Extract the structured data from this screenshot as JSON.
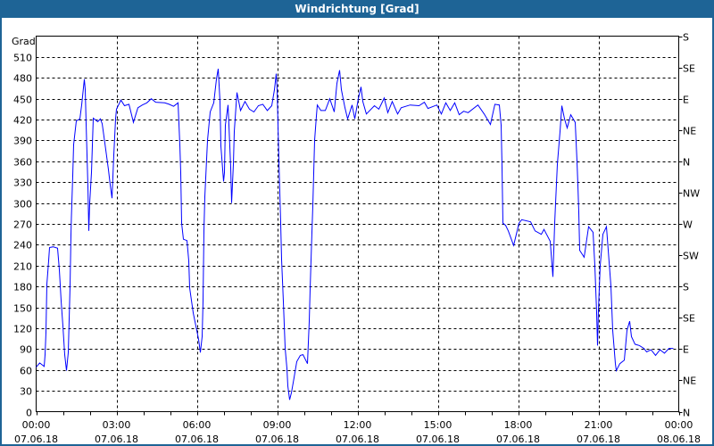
{
  "window": {
    "title": "Windrichtung [Grad]"
  },
  "colors": {
    "titlebar": "#1e6496",
    "series": "#0000ff",
    "grid": "#000000"
  },
  "chart_data": {
    "type": "line",
    "title": "Windrichtung [Grad]",
    "ylabel": "Grad",
    "ylim": [
      0,
      540
    ],
    "xlim": [
      "07.06.18 00:00",
      "08.06.18 00:00"
    ],
    "grid": true,
    "yticks": [
      "0",
      "30",
      "60",
      "90",
      "120",
      "150",
      "180",
      "210",
      "240",
      "270",
      "300",
      "330",
      "360",
      "390",
      "420",
      "450",
      "480",
      "510"
    ],
    "right_ticks": [
      "N",
      "NE",
      "E",
      "SE",
      "S",
      "SW",
      "W",
      "NW",
      "N",
      "NE",
      "E",
      "SE",
      "S"
    ],
    "xticks": [
      {
        "time": "00:00",
        "date": "07.06.18"
      },
      {
        "time": "03:00",
        "date": "07.06.18"
      },
      {
        "time": "06:00",
        "date": "07.06.18"
      },
      {
        "time": "09:00",
        "date": "07.06.18"
      },
      {
        "time": "12:00",
        "date": "07.06.18"
      },
      {
        "time": "15:00",
        "date": "07.06.18"
      },
      {
        "time": "18:00",
        "date": "07.06.18"
      },
      {
        "time": "21:00",
        "date": "07.06.18"
      },
      {
        "time": "00:00",
        "date": "08.06.18"
      }
    ],
    "series": [
      {
        "x": [
          "00:00",
          "00:08",
          "00:18",
          "00:20",
          "00:22",
          "00:24",
          "00:28",
          "00:30",
          "00:38",
          "00:48",
          "00:52",
          "00:56",
          "01:00",
          "01:04",
          "01:08",
          "01:12",
          "01:14",
          "01:16",
          "01:18",
          "01:19",
          "01:22",
          "01:24",
          "01:30",
          "01:38",
          "01:42",
          "01:48",
          "01:50",
          "01:52",
          "01:54",
          "01:56",
          "01:58",
          "02:00",
          "02:04",
          "02:08",
          "02:18",
          "02:24",
          "02:28",
          "02:34",
          "02:42",
          "02:46",
          "02:50",
          "02:54",
          "02:58",
          "03:00",
          "03:10",
          "03:18",
          "03:28",
          "03:38",
          "03:48",
          "03:58",
          "04:08",
          "04:18",
          "04:28",
          "04:48",
          "04:58",
          "05:08",
          "05:18",
          "05:22",
          "05:24",
          "05:26",
          "05:30",
          "05:38",
          "05:42",
          "05:44",
          "05:52",
          "05:58",
          "06:04",
          "06:08",
          "06:12",
          "06:14",
          "06:16",
          "06:18",
          "06:24",
          "06:30",
          "06:38",
          "06:44",
          "06:48",
          "06:52",
          "06:54",
          "07:00",
          "07:02",
          "07:04",
          "07:10",
          "07:12",
          "07:16",
          "07:18",
          "07:22",
          "07:24",
          "07:30",
          "07:38",
          "07:48",
          "07:58",
          "08:08",
          "08:18",
          "08:28",
          "08:38",
          "08:48",
          "08:54",
          "08:58",
          "09:00",
          "09:02",
          "09:04",
          "09:08",
          "09:10",
          "09:14",
          "09:18",
          "09:22",
          "09:24",
          "09:28",
          "09:32",
          "09:38",
          "09:44",
          "09:52",
          "09:58",
          "10:08",
          "10:12",
          "10:14",
          "10:18",
          "10:20",
          "10:24",
          "10:28",
          "10:30",
          "10:38",
          "10:48",
          "10:58",
          "11:08",
          "11:14",
          "11:20",
          "11:24",
          "11:32",
          "11:38",
          "11:48",
          "11:54",
          "12:02",
          "12:08",
          "12:12",
          "12:20",
          "12:38",
          "12:48",
          "13:00",
          "13:08",
          "13:18",
          "13:30",
          "13:38",
          "13:58",
          "14:18",
          "14:30",
          "14:38",
          "14:58",
          "15:08",
          "15:18",
          "15:28",
          "15:38",
          "15:48",
          "15:58",
          "16:08",
          "16:30",
          "16:44",
          "16:58",
          "17:08",
          "17:18",
          "17:22",
          "17:24",
          "17:26",
          "17:32",
          "17:38",
          "17:50",
          "18:02",
          "18:08",
          "18:28",
          "18:38",
          "18:52",
          "18:58",
          "19:12",
          "19:18",
          "19:22",
          "19:24",
          "19:28",
          "19:34",
          "19:38",
          "19:44",
          "19:50",
          "19:58",
          "20:08",
          "20:12",
          "20:14",
          "20:16",
          "20:18",
          "20:28",
          "20:38",
          "20:48",
          "20:52",
          "20:56",
          "20:58",
          "21:00",
          "21:04",
          "21:10",
          "21:18",
          "21:24",
          "21:28",
          "21:32",
          "21:38",
          "21:40",
          "21:48",
          "21:58",
          "22:04",
          "22:10",
          "22:14",
          "22:22",
          "22:32",
          "22:42",
          "22:48",
          "22:58",
          "23:08",
          "23:18",
          "23:28",
          "23:38",
          "23:48"
        ],
        "y": [
          64,
          70,
          65,
          82,
          114,
          183,
          217,
          236,
          237,
          235,
          204,
          159,
          123,
          82,
          59,
          85,
          133,
          181,
          254,
          280,
          339,
          384,
          418,
          421,
          441,
          478,
          463,
          414,
          369,
          324,
          260,
          300,
          344,
          422,
          417,
          421,
          414,
          386,
          348,
          326,
          307,
          369,
          421,
          435,
          448,
          440,
          442,
          416,
          437,
          441,
          444,
          450,
          445,
          444,
          442,
          439,
          444,
          384,
          344,
          271,
          248,
          246,
          217,
          178,
          142,
          123,
          104,
          85,
          108,
          159,
          260,
          309,
          390,
          431,
          444,
          478,
          493,
          446,
          382,
          331,
          344,
          412,
          441,
          412,
          351,
          300,
          356,
          403,
          459,
          433,
          446,
          435,
          431,
          440,
          442,
          433,
          440,
          463,
          486,
          463,
          412,
          360,
          271,
          219,
          158,
          91,
          62,
          37,
          17,
          27,
          49,
          72,
          81,
          82,
          69,
          130,
          177,
          258,
          296,
          390,
          425,
          441,
          433,
          433,
          450,
          431,
          472,
          491,
          463,
          437,
          421,
          441,
          421,
          450,
          467,
          446,
          428,
          440,
          435,
          451,
          430,
          446,
          428,
          437,
          441,
          440,
          445,
          436,
          441,
          428,
          444,
          433,
          444,
          427,
          432,
          430,
          441,
          428,
          413,
          442,
          441,
          412,
          351,
          271,
          268,
          260,
          239,
          271,
          276,
          273,
          260,
          255,
          262,
          245,
          194,
          271,
          300,
          356,
          403,
          440,
          421,
          408,
          427,
          416,
          360,
          326,
          287,
          232,
          222,
          266,
          258,
          210,
          142,
          95,
          146,
          210,
          255,
          266,
          215,
          181,
          117,
          69,
          59,
          69,
          74,
          117,
          130,
          108,
          97,
          95,
          91,
          86,
          89,
          81,
          89,
          84,
          91,
          91
        ]
      }
    ]
  }
}
